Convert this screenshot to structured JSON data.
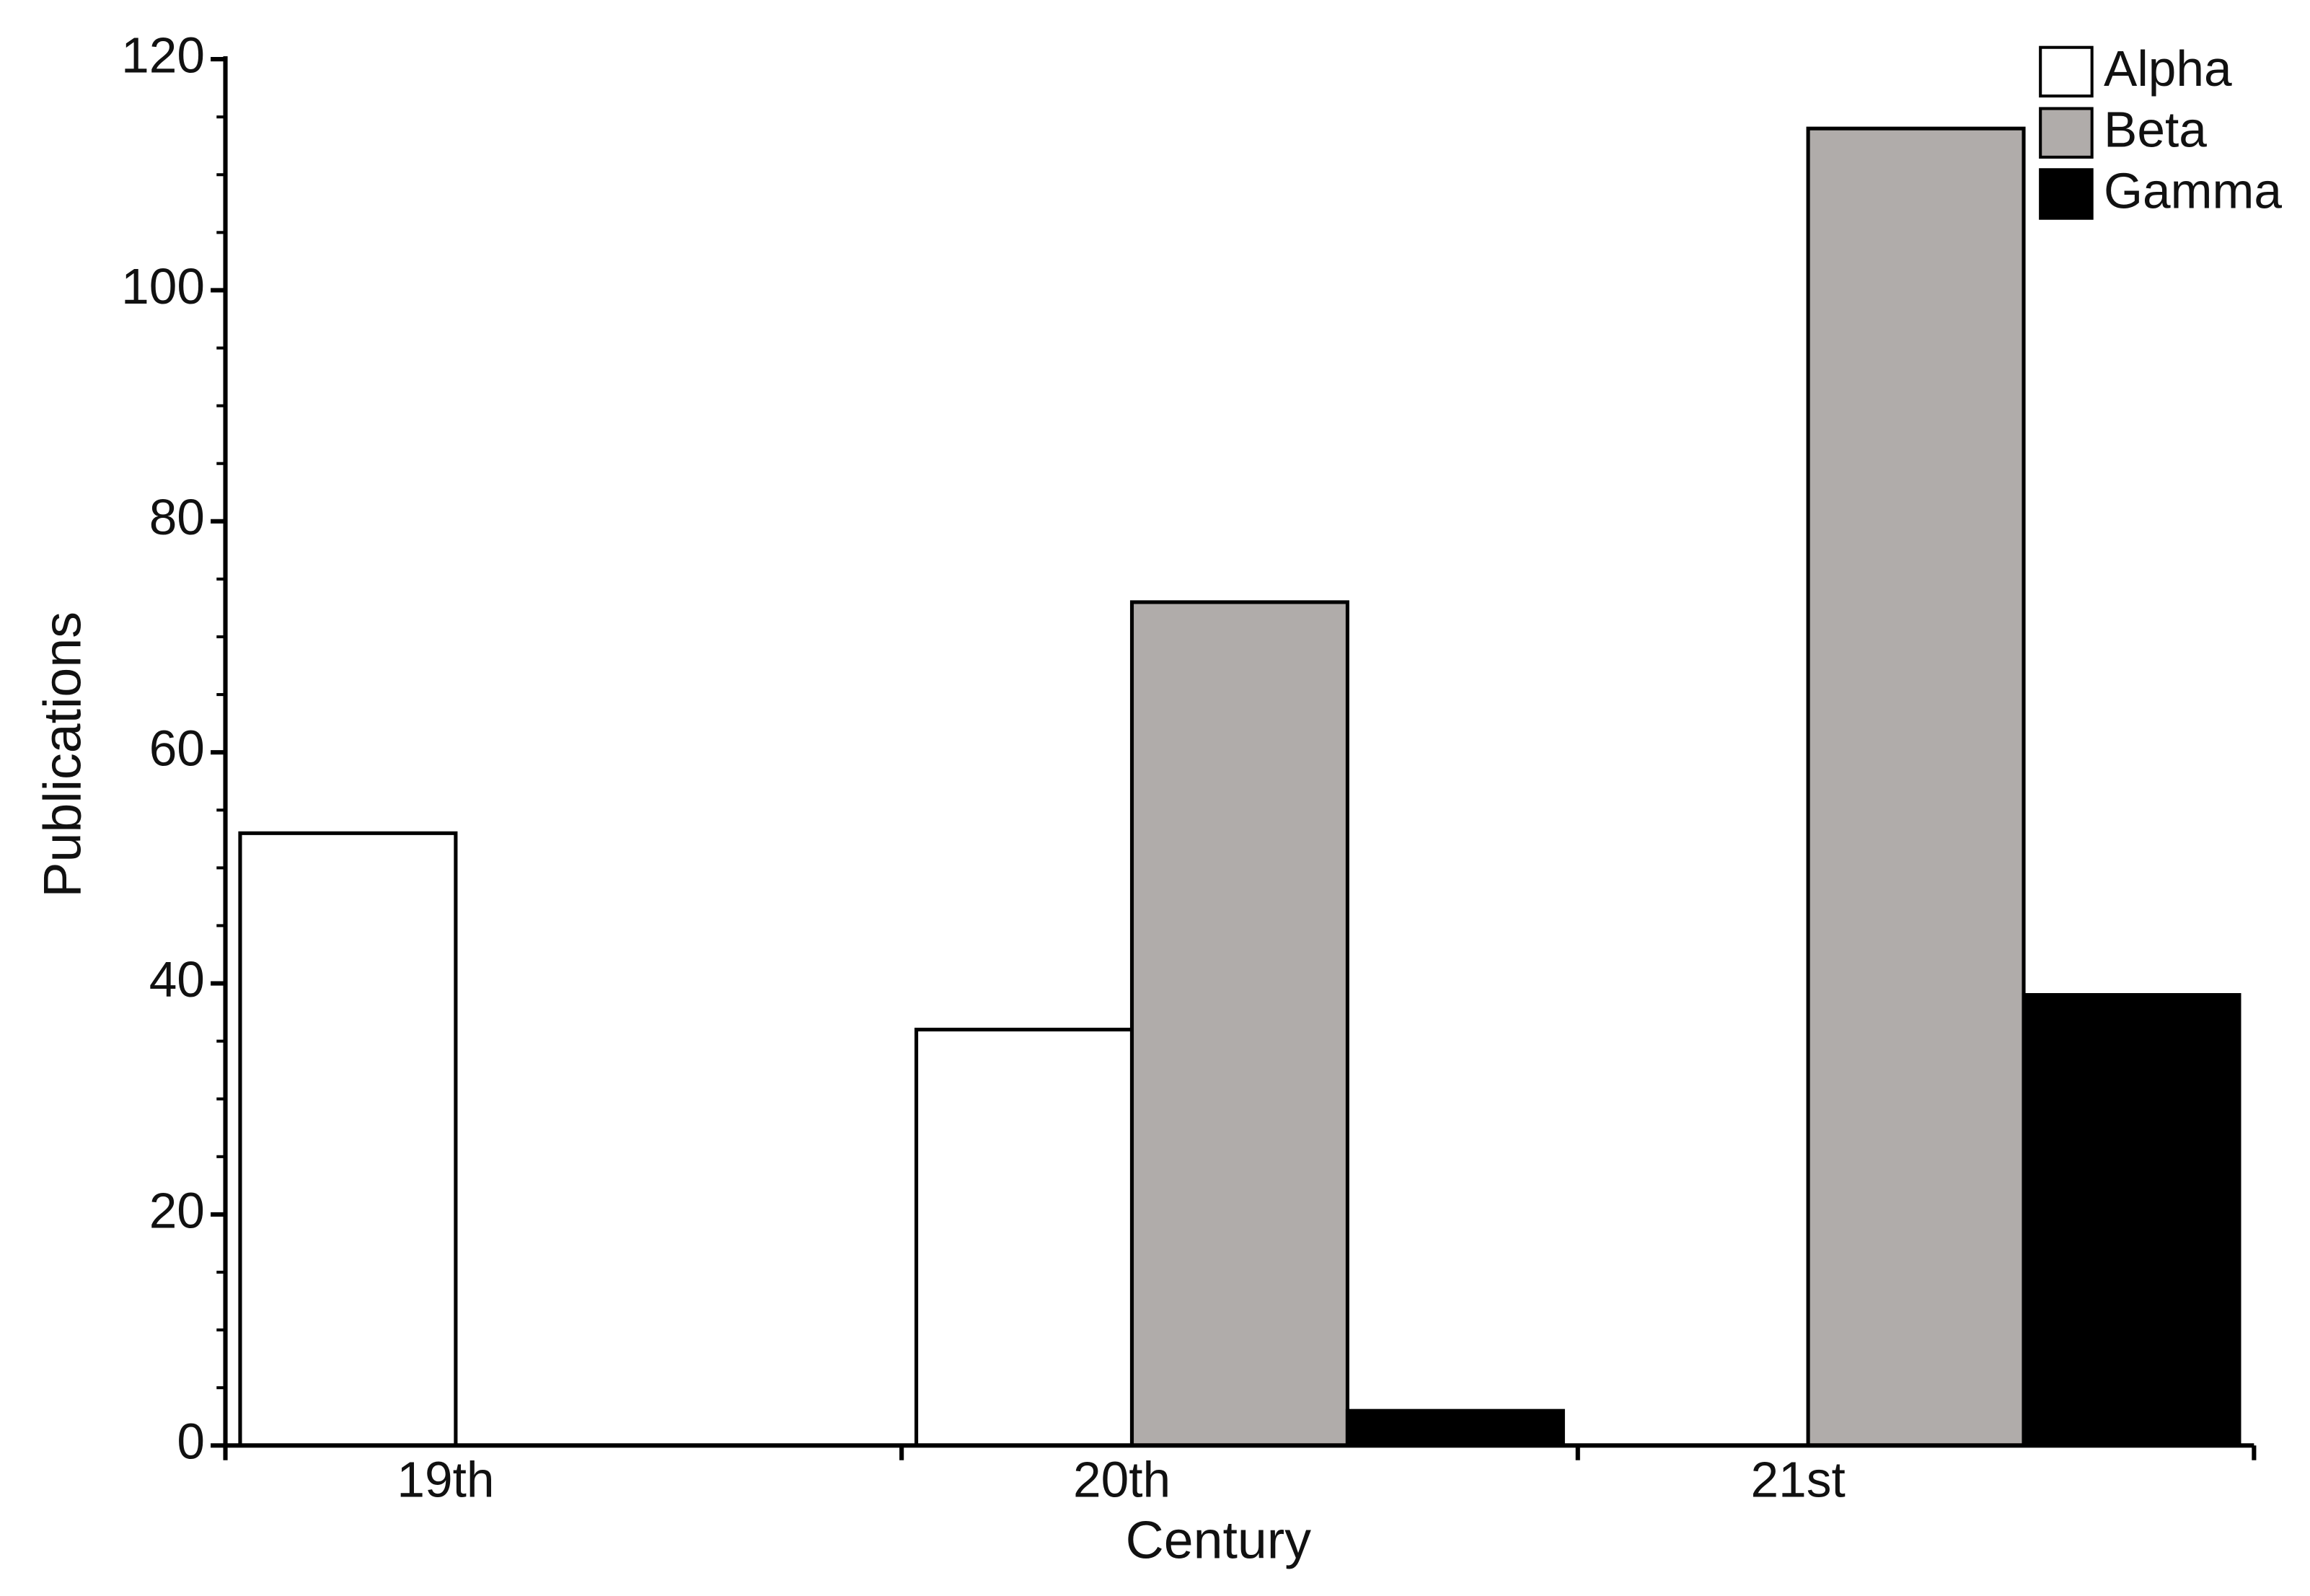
{
  "chart_data": {
    "type": "bar",
    "x_label": "Century",
    "y_label": "Publications",
    "categories": [
      "19th",
      "20th",
      "21st"
    ],
    "series": [
      {
        "name": "Alpha",
        "color": "#ffffff",
        "values": [
          53,
          36,
          null
        ]
      },
      {
        "name": "Beta",
        "color": "#b0acaa",
        "values": [
          null,
          73,
          114
        ]
      },
      {
        "name": "Gamma",
        "color": "#000000",
        "values": [
          null,
          3,
          39
        ]
      }
    ],
    "ylim": [
      0,
      120
    ],
    "yticks": [
      0,
      20,
      40,
      60,
      80,
      100,
      120
    ],
    "yticks_minor": [
      5,
      10,
      15,
      25,
      30,
      35,
      45,
      50,
      55,
      65,
      70,
      75,
      85,
      90,
      95,
      105,
      110,
      115
    ],
    "grid": false,
    "legend": "top-right"
  }
}
